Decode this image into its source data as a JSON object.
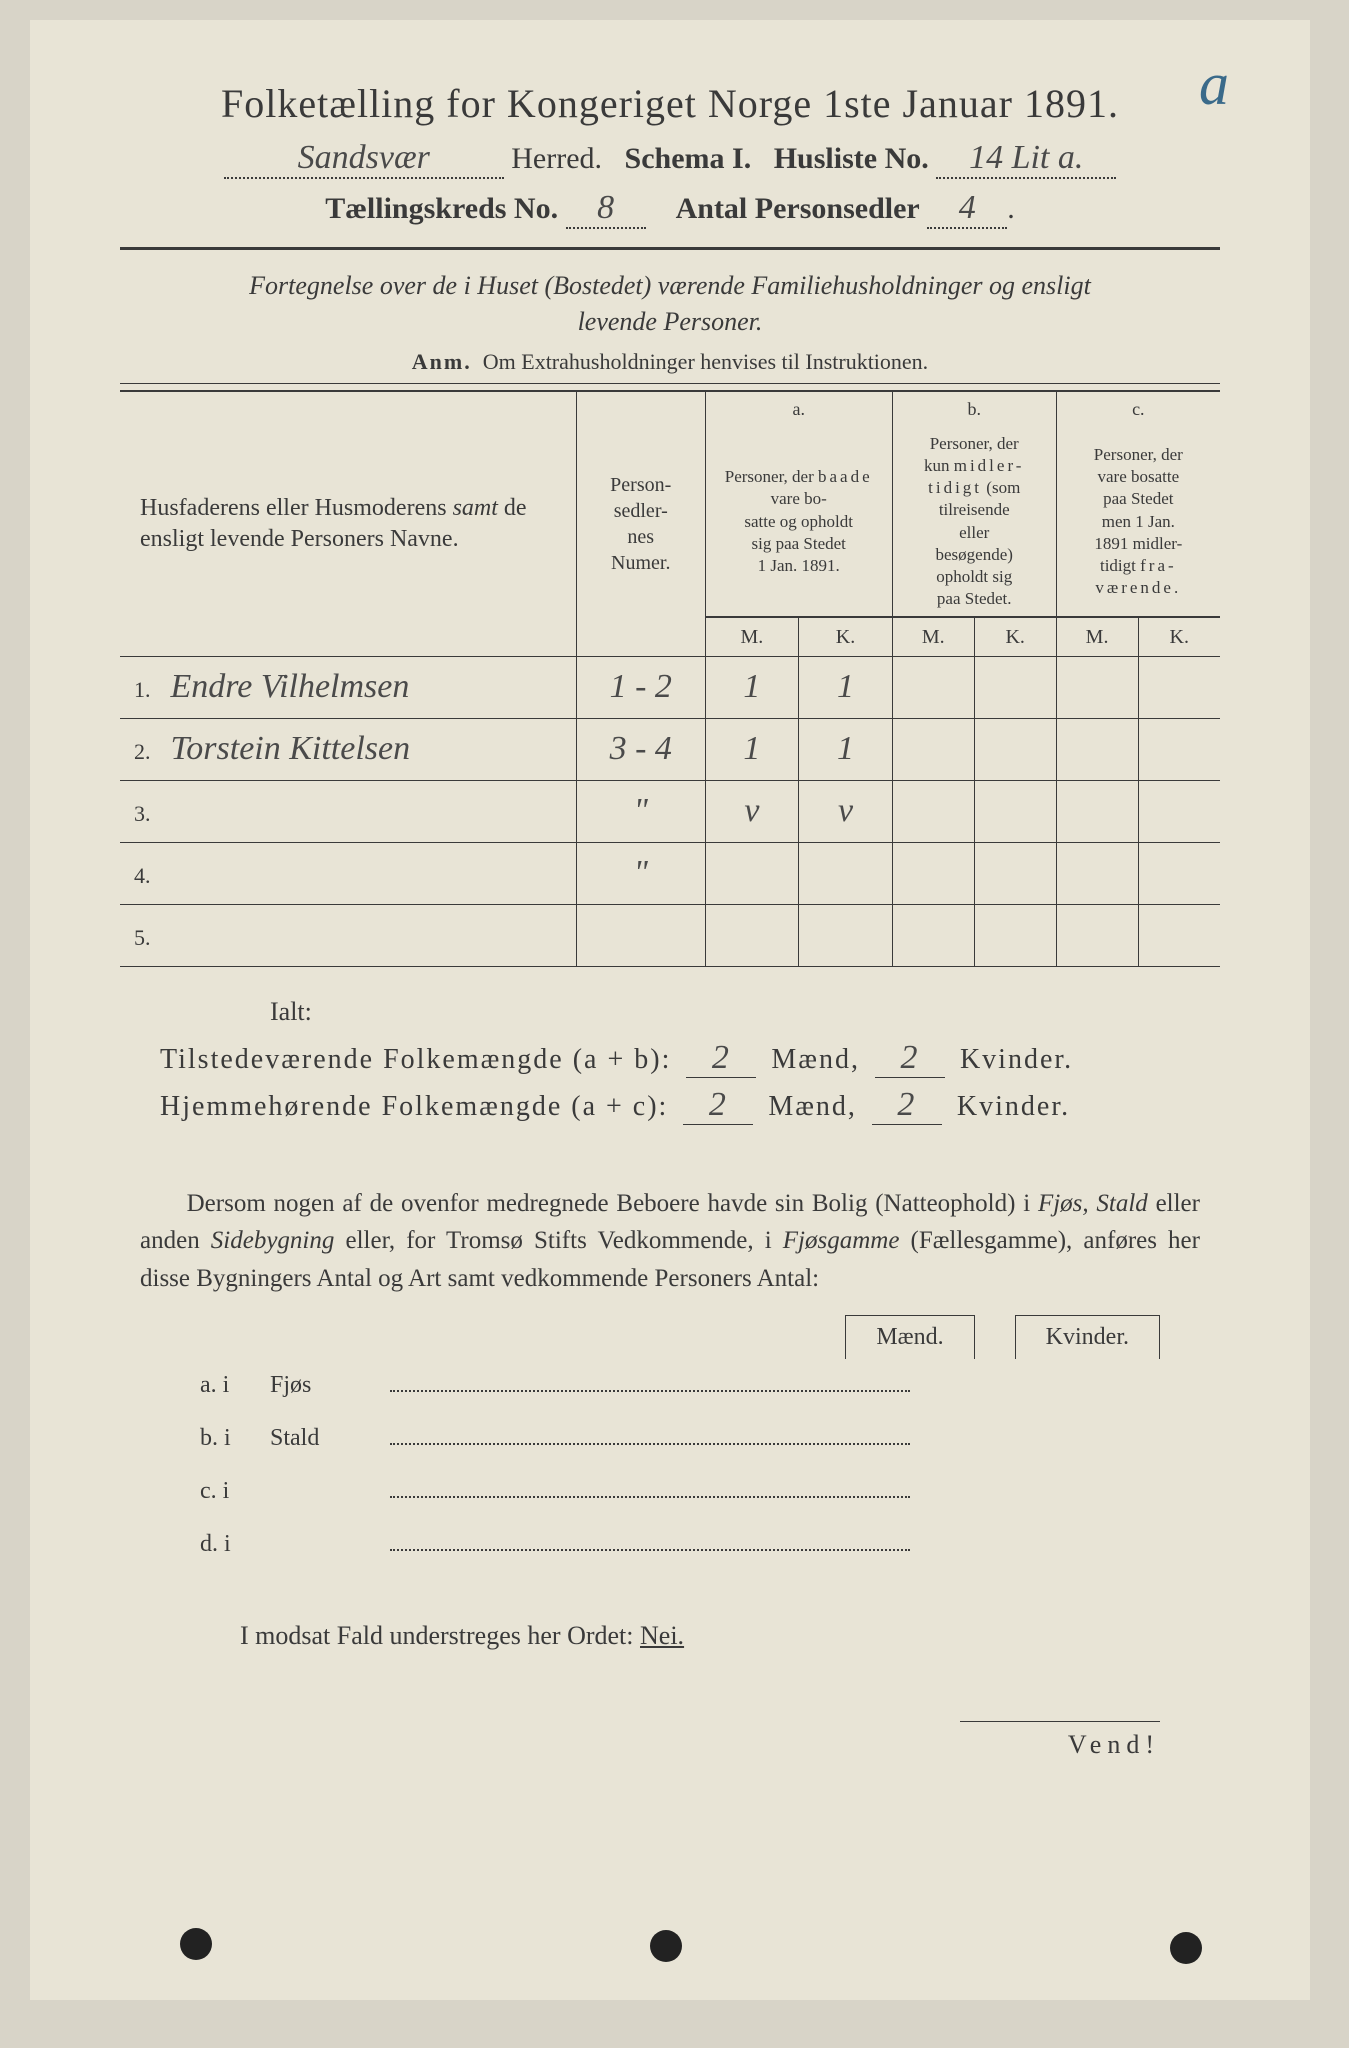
{
  "colors": {
    "page_bg": "#e8e4d6",
    "outer_bg": "#d8d4c8",
    "ink": "#3a3a3a",
    "blue_annot": "#3a6a8a",
    "hand_ink": "#4a4a4a"
  },
  "typography": {
    "title_size_pt": 40,
    "body_size_pt": 26,
    "table_body_size_pt": 26,
    "hand_family": "cursive"
  },
  "header": {
    "title": "Folketælling for Kongeriget Norge 1ste Januar 1891.",
    "annotation_letter": "a",
    "herred_hand": "Sandsvær",
    "herred_label": "Herred.",
    "schema_label": "Schema I.",
    "husliste_label": "Husliste No.",
    "husliste_hand": "14 Lit a.",
    "kreds_label": "Tællingskreds No.",
    "kreds_hand": "8",
    "antal_label": "Antal Personsedler",
    "antal_hand": "4"
  },
  "description": {
    "line1": "Fortegnelse over de i Huset (Bostedet) værende Familiehusholdninger og ensligt",
    "line2": "levende Personer.",
    "anm_label": "Anm.",
    "anm_text": "Om Extrahusholdninger henvises til Instruktionen."
  },
  "table": {
    "col_names": "Husfaderens eller Husmoderens samt de ensligt levende Personers Navne.",
    "col_numer": "Person-sedler-nes Numer.",
    "group_a_label": "a.",
    "group_a_text": "Personer, der baade vare bosatte og opholdt sig paa Stedet 1 Jan. 1891.",
    "group_b_label": "b.",
    "group_b_text": "Personer, der kun midlertidigt (som tilreisende eller besøgende) opholdt sig paa Stedet.",
    "group_c_label": "c.",
    "group_c_text": "Personer, der vare bosatte paa Stedet men 1 Jan. 1891 midlertidigt fraværende.",
    "mk_m": "M.",
    "mk_k": "K.",
    "rows": [
      {
        "idx": "1.",
        "name_hand": "Endre Vilhelmsen",
        "numer_hand": "1 - 2",
        "a_m": "1",
        "a_k": "1",
        "b_m": "",
        "b_k": "",
        "c_m": "",
        "c_k": ""
      },
      {
        "idx": "2.",
        "name_hand": "Torstein Kittelsen",
        "numer_hand": "3 - 4",
        "a_m": "1",
        "a_k": "1",
        "b_m": "",
        "b_k": "",
        "c_m": "",
        "c_k": ""
      },
      {
        "idx": "3.",
        "name_hand": "",
        "numer_hand": "\"",
        "a_m": "v",
        "a_k": "v",
        "b_m": "",
        "b_k": "",
        "c_m": "",
        "c_k": ""
      },
      {
        "idx": "4.",
        "name_hand": "",
        "numer_hand": "\"",
        "a_m": "",
        "a_k": "",
        "b_m": "",
        "b_k": "",
        "c_m": "",
        "c_k": ""
      },
      {
        "idx": "5.",
        "name_hand": "",
        "numer_hand": "",
        "a_m": "",
        "a_k": "",
        "b_m": "",
        "b_k": "",
        "c_m": "",
        "c_k": ""
      }
    ]
  },
  "totals": {
    "ialt_label": "Ialt:",
    "tilstede_label": "Tilstedeværende Folkemængde (a + b):",
    "tilstede_m": "2",
    "tilstede_k": "2",
    "hjemme_label": "Hjemmehørende Folkemængde (a + c):",
    "hjemme_m": "2",
    "hjemme_k": "2",
    "maend": "Mænd,",
    "kvinder": "Kvinder."
  },
  "paragraph": "Dersom nogen af de ovenfor medregnede Beboere havde sin Bolig (Natteophold) i Fjøs, Stald eller anden Sidebygning eller, for Tromsø Stifts Vedkommende, i Fjøsgamme (Fællesgamme), anføres her disse Bygningers Antal og Art samt vedkommende Personers Antal:",
  "mk_header": {
    "m": "Mænd.",
    "k": "Kvinder."
  },
  "sublist": [
    {
      "label": "a. i",
      "word": "Fjøs"
    },
    {
      "label": "b. i",
      "word": "Stald"
    },
    {
      "label": "c. i",
      "word": ""
    },
    {
      "label": "d. i",
      "word": ""
    }
  ],
  "modsat": "I modsat Fald understreges her Ordet:",
  "nei": "Nei.",
  "vend": "Vend!"
}
